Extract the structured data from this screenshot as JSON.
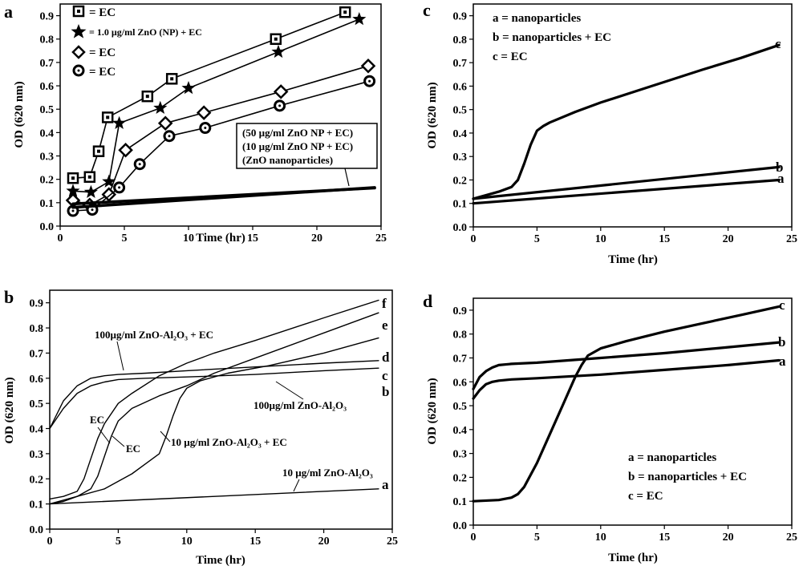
{
  "chart_data": [
    {
      "panel": "a",
      "type": "line",
      "xlabel": "Time (hr)",
      "ylabel": "OD (620 nm)",
      "xlim": [
        0,
        25
      ],
      "ylim": [
        0,
        0.95
      ],
      "xticks": [
        0,
        5,
        10,
        15,
        20,
        25
      ],
      "yticks": [
        0.0,
        0.1,
        0.2,
        0.3,
        0.4,
        0.5,
        0.6,
        0.7,
        0.8,
        0.9
      ],
      "legend": [
        {
          "marker": "square",
          "label": "= EC"
        },
        {
          "marker": "star",
          "label": "= 1.0 µg/ml ZnO (NP) + EC"
        },
        {
          "marker": "diamond",
          "label": "= EC"
        },
        {
          "marker": "circle",
          "label": "= EC"
        }
      ],
      "annotation_lines": [
        "(50 µg/ml ZnO NP + EC)",
        "(10 µg/ml ZnO NP + EC)",
        "(ZnO nanoparticles)"
      ],
      "series": [
        {
          "name": "square EC",
          "marker": "square",
          "x": [
            1.0,
            2.3,
            3.0,
            3.7,
            6.8,
            8.7,
            16.8,
            22.2
          ],
          "y": [
            0.205,
            0.21,
            0.32,
            0.465,
            0.555,
            0.63,
            0.8,
            0.915
          ]
        },
        {
          "name": "1.0 µg/ml ZnO (NP) + EC",
          "marker": "star",
          "x": [
            1.0,
            2.4,
            3.8,
            4.6,
            7.8,
            10.0,
            17.0,
            23.3
          ],
          "y": [
            0.15,
            0.145,
            0.19,
            0.44,
            0.505,
            0.59,
            0.745,
            0.885
          ]
        },
        {
          "name": "diamond EC",
          "marker": "diamond",
          "x": [
            1.0,
            2.3,
            3.8,
            5.1,
            8.2,
            11.2,
            17.2,
            24.0
          ],
          "y": [
            0.11,
            0.09,
            0.135,
            0.325,
            0.44,
            0.485,
            0.575,
            0.685
          ]
        },
        {
          "name": "circle EC",
          "marker": "circle",
          "x": [
            1.0,
            2.5,
            4.6,
            6.2,
            8.5,
            11.3,
            17.1,
            24.1
          ],
          "y": [
            0.065,
            0.07,
            0.165,
            0.265,
            0.385,
            0.42,
            0.515,
            0.62
          ]
        },
        {
          "name": "ZnO NP lines",
          "marker": "none",
          "thick": true,
          "x": [
            1.0,
            24.5
          ],
          "y": [
            0.08,
            0.165
          ]
        },
        {
          "name": "ZnO NP lines 2",
          "marker": "none",
          "thick": true,
          "x": [
            1.0,
            24.5
          ],
          "y": [
            0.095,
            0.163
          ]
        }
      ]
    },
    {
      "panel": "b",
      "type": "line",
      "xlabel": "Time (hr)",
      "ylabel": "OD (620 nm)",
      "xlim": [
        0,
        25
      ],
      "ylim": [
        0,
        0.95
      ],
      "xticks": [
        0,
        5,
        10,
        15,
        20,
        25
      ],
      "yticks": [
        0.0,
        0.1,
        0.2,
        0.3,
        0.4,
        0.5,
        0.6,
        0.7,
        0.8,
        0.9
      ],
      "annotations": [
        "100µg/ml ZnO-Al₂O₃ + EC",
        "100µg/ml ZnO-Al₂O₃",
        "EC",
        "EC",
        "10 µg/ml ZnO-Al₂O₃ + EC",
        "10 µg/ml ZnO-Al₂O₃"
      ],
      "series": [
        {
          "name": "a",
          "x": [
            0,
            24
          ],
          "y": [
            0.1,
            0.16
          ]
        },
        {
          "name": "b",
          "x": [
            0,
            1,
            2,
            3,
            4,
            5,
            7,
            10,
            15,
            20,
            24
          ],
          "y": [
            0.4,
            0.48,
            0.54,
            0.57,
            0.585,
            0.595,
            0.6,
            0.605,
            0.615,
            0.63,
            0.64
          ]
        },
        {
          "name": "c",
          "x": [
            0,
            1,
            2,
            3,
            4,
            5,
            7,
            10,
            15,
            20,
            24
          ],
          "y": [
            0.4,
            0.51,
            0.57,
            0.6,
            0.61,
            0.615,
            0.62,
            0.63,
            0.645,
            0.66,
            0.67
          ]
        },
        {
          "name": "d",
          "x": [
            0,
            2,
            4,
            6,
            7,
            8,
            8.5,
            9,
            9.5,
            10,
            11,
            13,
            16,
            20,
            24
          ],
          "y": [
            0.1,
            0.13,
            0.16,
            0.22,
            0.26,
            0.3,
            0.37,
            0.45,
            0.52,
            0.56,
            0.59,
            0.62,
            0.65,
            0.7,
            0.76
          ]
        },
        {
          "name": "e",
          "x": [
            0,
            1,
            2,
            3,
            3.5,
            4,
            4.5,
            5,
            6,
            8,
            10,
            12,
            15,
            20,
            24
          ],
          "y": [
            0.1,
            0.11,
            0.13,
            0.16,
            0.21,
            0.29,
            0.37,
            0.43,
            0.48,
            0.53,
            0.57,
            0.62,
            0.68,
            0.78,
            0.86
          ]
        },
        {
          "name": "f",
          "x": [
            0,
            1,
            2,
            2.5,
            3,
            3.5,
            4,
            5,
            6,
            8,
            10,
            12,
            15,
            20,
            24
          ],
          "y": [
            0.12,
            0.13,
            0.15,
            0.2,
            0.28,
            0.36,
            0.42,
            0.5,
            0.54,
            0.61,
            0.66,
            0.7,
            0.75,
            0.84,
            0.91
          ]
        }
      ]
    },
    {
      "panel": "c",
      "type": "line",
      "xlabel": "Time (hr)",
      "ylabel": "OD (620 nm)",
      "xlim": [
        0,
        25
      ],
      "ylim": [
        0,
        0.95
      ],
      "xticks": [
        0,
        5,
        10,
        15,
        20,
        25
      ],
      "yticks": [
        0.0,
        0.1,
        0.2,
        0.3,
        0.4,
        0.5,
        0.6,
        0.7,
        0.8,
        0.9
      ],
      "legend_lines": [
        "a = nanoparticles",
        "b = nanoparticles + EC",
        "c = EC"
      ],
      "series": [
        {
          "name": "a",
          "x": [
            0,
            24
          ],
          "y": [
            0.1,
            0.2
          ]
        },
        {
          "name": "b",
          "x": [
            0,
            24
          ],
          "y": [
            0.12,
            0.255
          ]
        },
        {
          "name": "c",
          "x": [
            0,
            2,
            3,
            3.5,
            4,
            4.5,
            5,
            5.5,
            6,
            8,
            10,
            14,
            18,
            21,
            24
          ],
          "y": [
            0.12,
            0.15,
            0.17,
            0.2,
            0.27,
            0.35,
            0.41,
            0.43,
            0.445,
            0.49,
            0.53,
            0.6,
            0.67,
            0.72,
            0.775
          ]
        }
      ]
    },
    {
      "panel": "d",
      "type": "line",
      "xlabel": "Time (hr)",
      "ylabel": "OD (620 nm)",
      "xlim": [
        0,
        25
      ],
      "ylim": [
        0,
        0.95
      ],
      "xticks": [
        0,
        5,
        10,
        15,
        20,
        25
      ],
      "yticks": [
        0.0,
        0.1,
        0.2,
        0.3,
        0.4,
        0.5,
        0.6,
        0.7,
        0.8,
        0.9
      ],
      "legend_lines": [
        "a = nanoparticles",
        "b = nanoparticles + EC",
        "c = EC"
      ],
      "series": [
        {
          "name": "a",
          "x": [
            0,
            0.5,
            1,
            1.5,
            2,
            3,
            5,
            10,
            15,
            20,
            24
          ],
          "y": [
            0.53,
            0.565,
            0.59,
            0.6,
            0.605,
            0.61,
            0.615,
            0.63,
            0.65,
            0.67,
            0.69
          ]
        },
        {
          "name": "b",
          "x": [
            0,
            0.5,
            1,
            1.5,
            2,
            3,
            5,
            10,
            15,
            20,
            24
          ],
          "y": [
            0.57,
            0.62,
            0.645,
            0.66,
            0.67,
            0.675,
            0.68,
            0.7,
            0.72,
            0.745,
            0.765
          ]
        },
        {
          "name": "c",
          "x": [
            0,
            2,
            3,
            3.5,
            4,
            5,
            6,
            7,
            8,
            8.5,
            9,
            10,
            12,
            15,
            18,
            21,
            24
          ],
          "y": [
            0.1,
            0.105,
            0.115,
            0.13,
            0.16,
            0.26,
            0.38,
            0.5,
            0.62,
            0.67,
            0.71,
            0.74,
            0.77,
            0.81,
            0.845,
            0.88,
            0.915
          ]
        }
      ]
    }
  ]
}
